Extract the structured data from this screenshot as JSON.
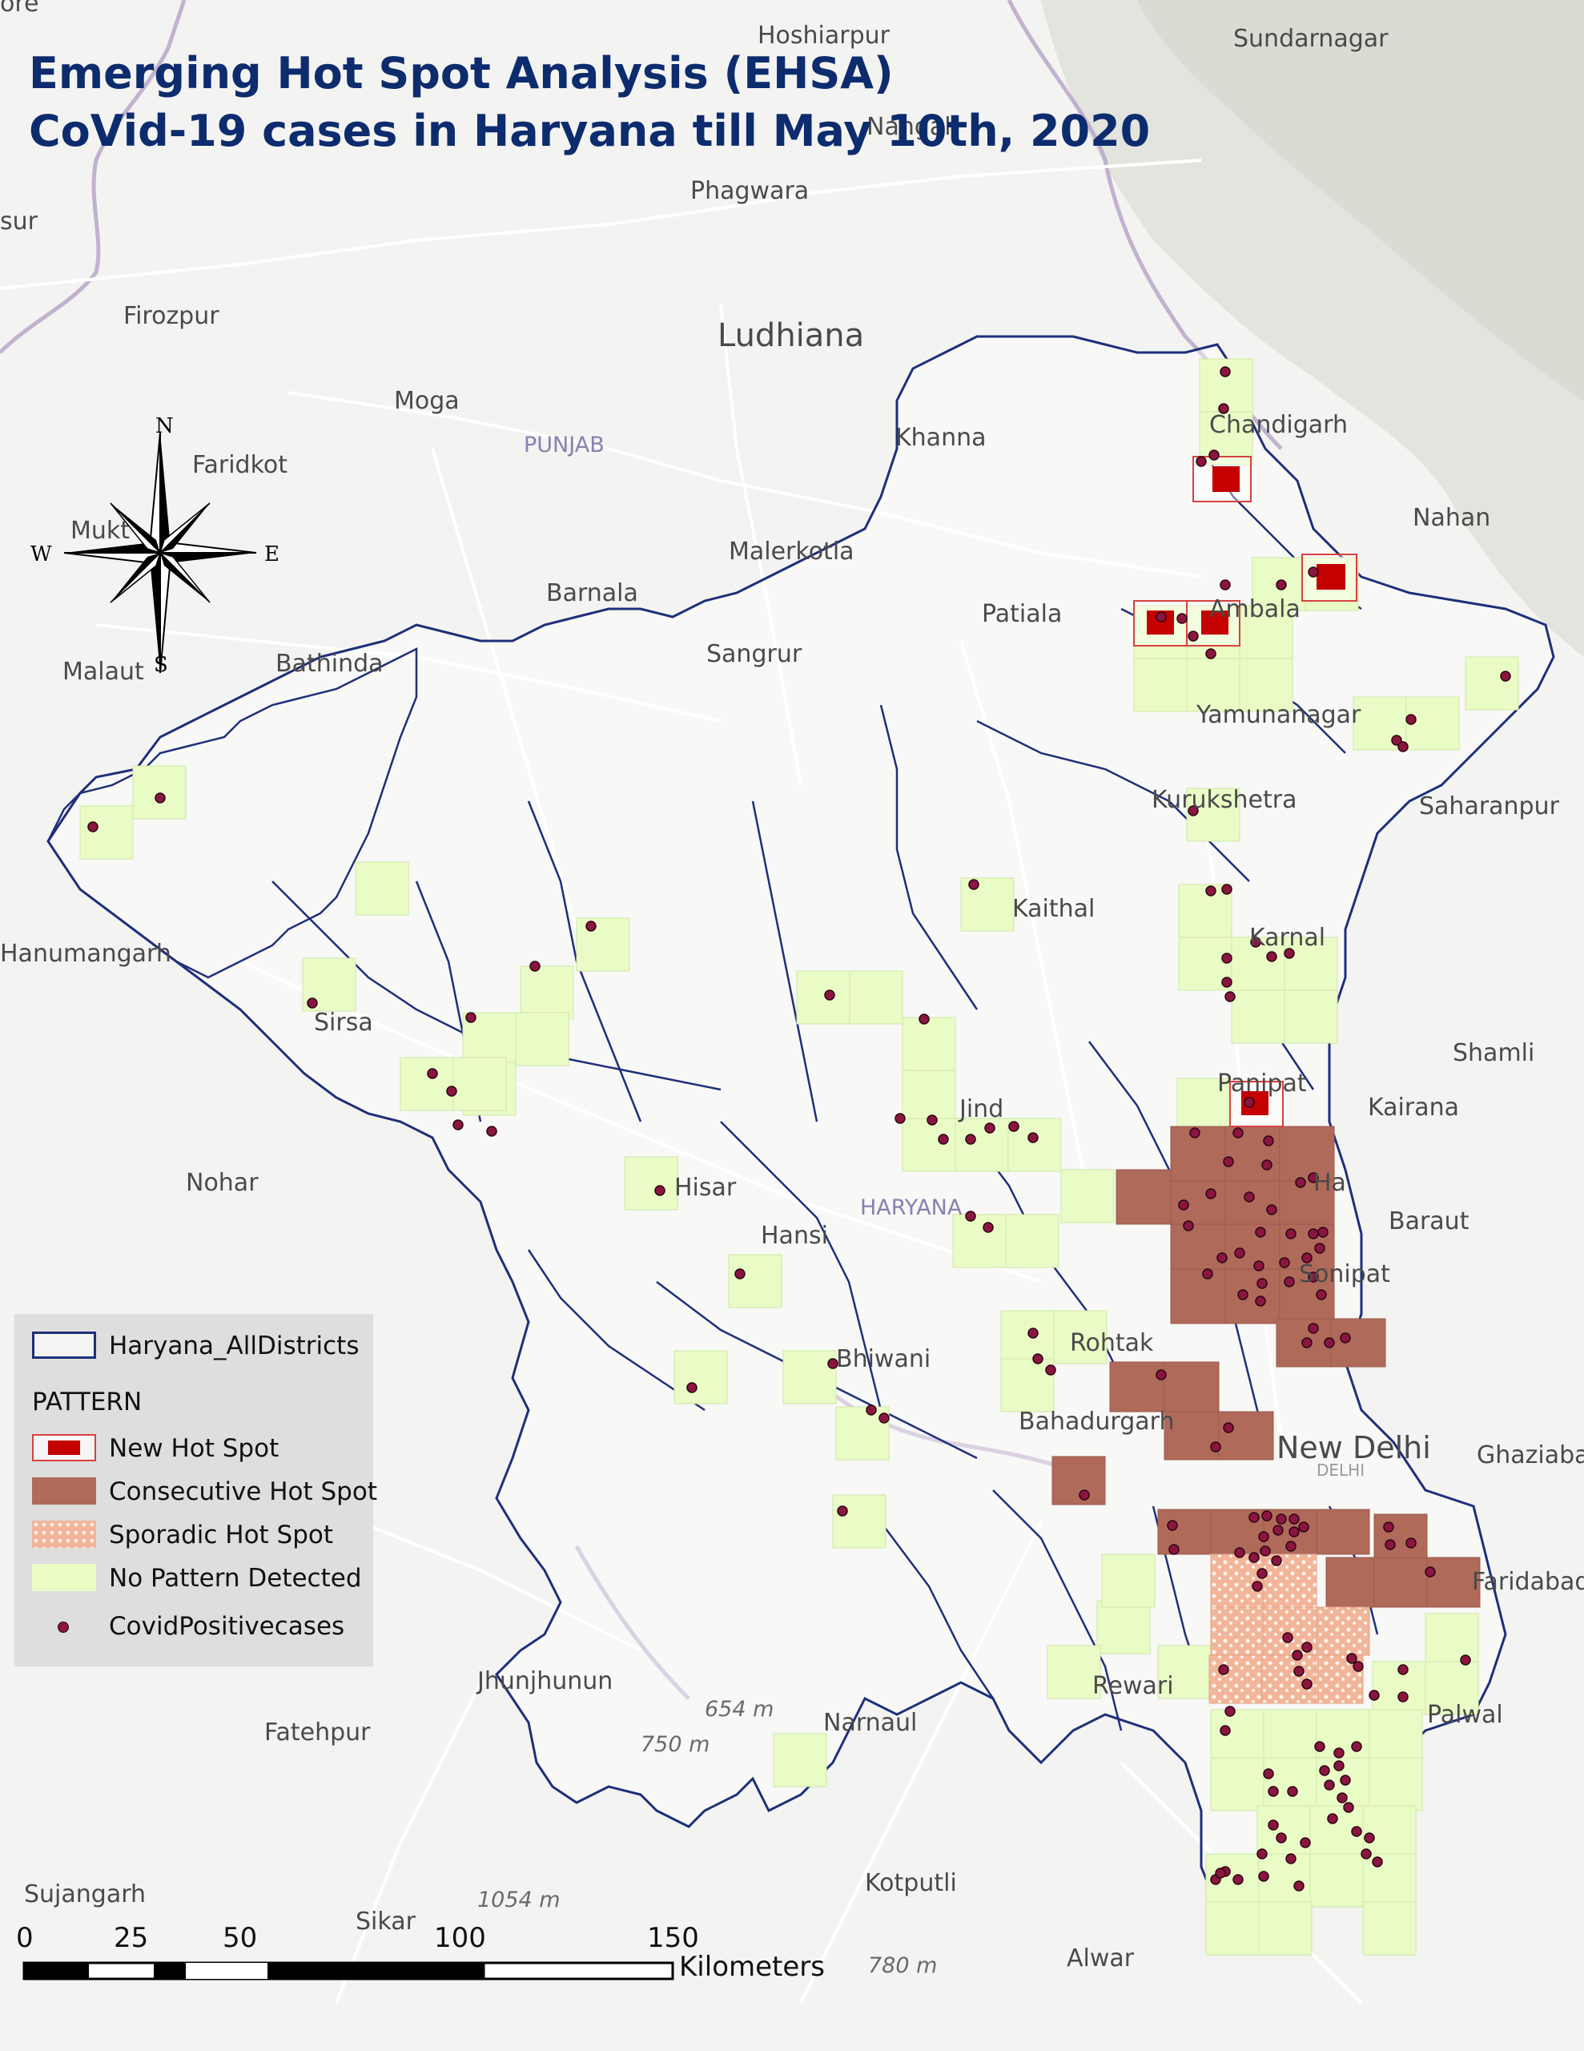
{
  "title": {
    "line1": "Emerging Hot Spot Analysis (EHSA)",
    "line2": "CoVid-19 cases in Haryana till May 10th, 2020"
  },
  "colors": {
    "new_hot_spot": "#c40000",
    "consecutive_hot_spot": "#b06a5a",
    "sporadic_hot_spot": "#f2b59a",
    "no_pattern": "#e9fcc6",
    "cases_dot": "#8b1540",
    "district_boundary": "#1e2f7a",
    "title": "#0d2c6e"
  },
  "places": [
    "Hoshiarpur",
    "Sundarnagar",
    "Phagwara",
    "Ludhiana",
    "Firozpur",
    "Moga",
    "PUNJAB",
    "Khanna",
    "Faridkot",
    "Nangal",
    "Chandigarh",
    "Nahan",
    "Malerkotla",
    "Barnala",
    "Patiala",
    "Sangrur",
    "Bathinda",
    "Malaut",
    "Mukt",
    "Ambala",
    "Yamunanagar",
    "Kurukshetra",
    "Saharanpur",
    "Kaithal",
    "Karnal",
    "Hanumangarh",
    "Sirsa",
    "Shamli",
    "Panipat",
    "Kairana",
    "Jind",
    "Nohar",
    "Hisar",
    "HARYANA",
    "Baraut",
    "Hansi",
    "Sonipat",
    "Bhiwani",
    "Rohtak",
    "Bahadurgarh",
    "New Delhi",
    "DELHI",
    "Ghaziabad",
    "Faridabad",
    "Rewari",
    "Palwal",
    "Jhunjhunun",
    "Fatehpur",
    "Narnaul",
    "Sujangarh",
    "Sikar",
    "Kotputli",
    "Alwar",
    "Ha",
    "sur",
    "ore"
  ],
  "elevation_labels": [
    "654 m",
    "750 m",
    "1054 m",
    "780 m"
  ],
  "north_arrow": {
    "n": "N",
    "s": "S",
    "e": "E",
    "w": "W"
  },
  "legend": {
    "districts_label": "Haryana_AllDistricts",
    "pattern_header": "PATTERN",
    "items": [
      {
        "label": "New Hot Spot"
      },
      {
        "label": "Consecutive Hot Spot"
      },
      {
        "label": "Sporadic Hot Spot"
      },
      {
        "label": "No Pattern Detected"
      },
      {
        "label": "CovidPositivecases"
      }
    ]
  },
  "scale_bar": {
    "ticks": [
      "0",
      "25",
      "50",
      "100",
      "150"
    ],
    "unit": "Kilometers"
  }
}
